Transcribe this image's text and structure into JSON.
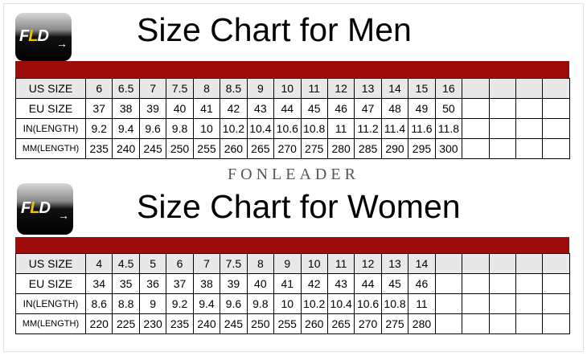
{
  "brand": "FONLEADER",
  "logo_text": "FLD",
  "colors": {
    "band": "#9e0b0b",
    "header_row": "#e8e8e8",
    "logo_accent": "#e8c600"
  },
  "men": {
    "title": "Size Chart for Men",
    "empty_columns": 4,
    "rows": [
      {
        "label": "US SIZE",
        "values": [
          "6",
          "6.5",
          "7",
          "7.5",
          "8",
          "8.5",
          "9",
          "10",
          "11",
          "12",
          "13",
          "14",
          "15",
          "16"
        ]
      },
      {
        "label": "EU SIZE",
        "values": [
          "37",
          "38",
          "39",
          "40",
          "41",
          "42",
          "43",
          "44",
          "45",
          "46",
          "47",
          "48",
          "49",
          "50"
        ]
      },
      {
        "label": "IN(LENGTH)",
        "values": [
          "9.2",
          "9.4",
          "9.6",
          "9.8",
          "10",
          "10.2",
          "10.4",
          "10.6",
          "10.8",
          "11",
          "11.2",
          "11.4",
          "11.6",
          "11.8"
        ]
      },
      {
        "label": "MM(LENGTH)",
        "values": [
          "235",
          "240",
          "245",
          "250",
          "255",
          "260",
          "265",
          "270",
          "275",
          "280",
          "285",
          "290",
          "295",
          "300"
        ]
      }
    ]
  },
  "women": {
    "title": "Size Chart for Women",
    "empty_columns": 5,
    "rows": [
      {
        "label": "US SIZE",
        "values": [
          "4",
          "4.5",
          "5",
          "6",
          "7",
          "7.5",
          "8",
          "9",
          "10",
          "11",
          "12",
          "13",
          "14"
        ]
      },
      {
        "label": "EU SIZE",
        "values": [
          "34",
          "35",
          "36",
          "37",
          "38",
          "39",
          "40",
          "41",
          "42",
          "43",
          "44",
          "45",
          "46"
        ]
      },
      {
        "label": "IN(LENGTH)",
        "values": [
          "8.6",
          "8.8",
          "9",
          "9.2",
          "9.4",
          "9.6",
          "9.8",
          "10",
          "10.2",
          "10.4",
          "10.6",
          "10.8",
          "11"
        ]
      },
      {
        "label": "MM(LENGTH)",
        "values": [
          "220",
          "225",
          "230",
          "235",
          "240",
          "245",
          "250",
          "255",
          "260",
          "265",
          "270",
          "275",
          "280"
        ]
      }
    ]
  }
}
